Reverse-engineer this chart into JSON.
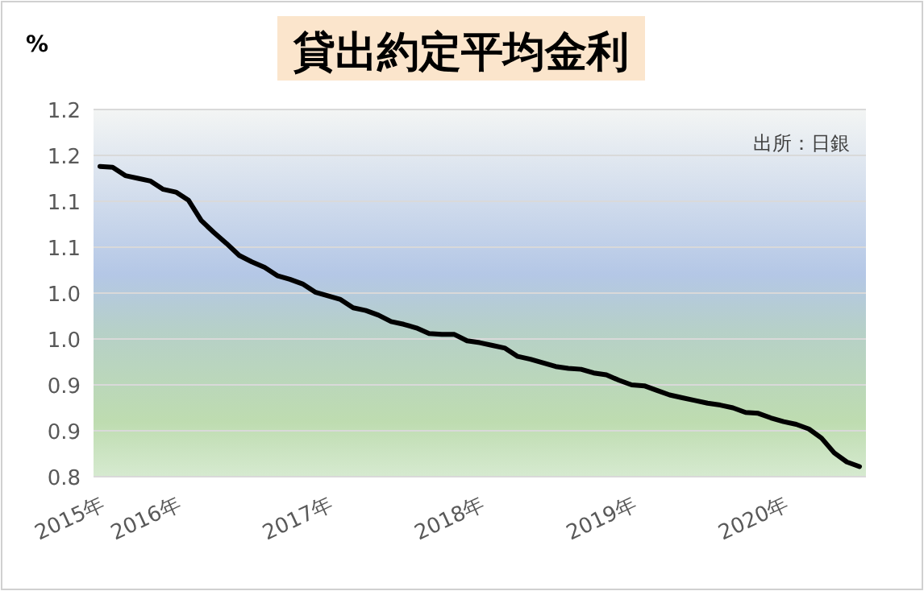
{
  "chart_data": {
    "type": "line",
    "title": "貸出約定平均金利",
    "ylabel": "%",
    "annotations": [
      "出所：日銀"
    ],
    "categories": [
      "2015年",
      null,
      null,
      null,
      null,
      null,
      "2016年",
      null,
      null,
      null,
      null,
      null,
      null,
      null,
      null,
      null,
      null,
      null,
      "2017年",
      null,
      null,
      null,
      null,
      null,
      null,
      null,
      null,
      null,
      null,
      null,
      "2018年",
      null,
      null,
      null,
      null,
      null,
      null,
      null,
      null,
      null,
      null,
      null,
      "2019年",
      null,
      null,
      null,
      null,
      null,
      null,
      null,
      null,
      null,
      null,
      null,
      "2020年",
      null,
      null,
      null,
      null,
      null,
      null
    ],
    "series": [
      {
        "color": "#000000",
        "values": [
          1.138,
          1.137,
          1.128,
          1.125,
          1.122,
          1.113,
          1.11,
          1.101,
          1.079,
          1.066,
          1.054,
          1.041,
          1.034,
          1.028,
          1.019,
          1.015,
          1.01,
          1.001,
          0.997,
          0.993,
          0.984,
          0.981,
          0.976,
          0.969,
          0.966,
          0.962,
          0.956,
          0.955,
          0.955,
          0.948,
          0.946,
          0.943,
          0.94,
          0.931,
          0.928,
          0.924,
          0.92,
          0.918,
          0.917,
          0.913,
          0.911,
          0.905,
          0.9,
          0.899,
          0.894,
          0.889,
          0.886,
          0.883,
          0.88,
          0.878,
          0.875,
          0.87,
          0.869,
          0.864,
          0.86,
          0.857,
          0.852,
          0.842,
          0.826,
          0.816,
          0.811
        ]
      }
    ],
    "ylim": [
      0.8,
      1.2
    ],
    "yticks": [
      0.8,
      {
        "value": 0.85,
        "label": "0.9"
      },
      0.9,
      {
        "value": 0.95,
        "label": "1.0"
      },
      {
        "value": 1.0,
        "label": "1.0"
      },
      {
        "value": 1.05,
        "label": "1.1"
      },
      1.1,
      {
        "value": 1.15,
        "label": "1.2"
      },
      {
        "value": 1.2,
        "label": "1.2"
      }
    ],
    "grid": "y",
    "marker": "none",
    "line_style": "solid"
  }
}
